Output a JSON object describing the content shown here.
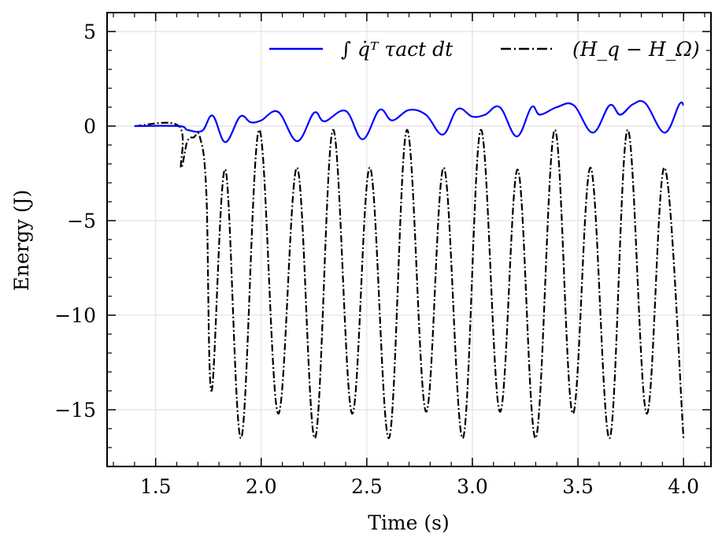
{
  "chart_data": {
    "type": "line",
    "title": "",
    "xlabel": "Time (s)",
    "ylabel": "Energy (J)",
    "xlim": [
      1.27,
      4.13
    ],
    "ylim": [
      -18.0,
      6.0
    ],
    "xticks": [
      1.5,
      2.0,
      2.5,
      3.0,
      3.5,
      4.0
    ],
    "xtick_labels": [
      "1.5",
      "2.0",
      "2.5",
      "3.0",
      "3.5",
      "4.0"
    ],
    "yticks": [
      5,
      0,
      -5,
      -10,
      -15
    ],
    "ytick_labels": [
      "5",
      "0",
      "−5",
      "−10",
      "−15"
    ],
    "grid": true,
    "legend_position": "top-right",
    "series": [
      {
        "name": "∫ q̇ᵀ τact dt",
        "color": "#0000ff",
        "style": "solid",
        "points": [
          [
            1.4,
            0.0
          ],
          [
            1.61,
            0.0
          ],
          [
            1.65,
            -0.2
          ],
          [
            1.72,
            -0.25
          ],
          [
            1.77,
            0.55
          ],
          [
            1.83,
            -0.85
          ],
          [
            1.9,
            0.5
          ],
          [
            1.95,
            0.2
          ],
          [
            2.0,
            0.3
          ],
          [
            2.08,
            0.75
          ],
          [
            2.17,
            -0.8
          ],
          [
            2.25,
            0.7
          ],
          [
            2.3,
            0.25
          ],
          [
            2.4,
            0.8
          ],
          [
            2.48,
            -0.7
          ],
          [
            2.56,
            0.85
          ],
          [
            2.62,
            0.3
          ],
          [
            2.7,
            0.85
          ],
          [
            2.78,
            0.6
          ],
          [
            2.86,
            -0.45
          ],
          [
            2.93,
            0.9
          ],
          [
            3.0,
            0.5
          ],
          [
            3.06,
            0.6
          ],
          [
            3.13,
            1.0
          ],
          [
            3.21,
            -0.55
          ],
          [
            3.28,
            1.0
          ],
          [
            3.32,
            0.6
          ],
          [
            3.4,
            1.0
          ],
          [
            3.48,
            1.1
          ],
          [
            3.57,
            -0.35
          ],
          [
            3.65,
            1.1
          ],
          [
            3.7,
            0.6
          ],
          [
            3.76,
            1.15
          ],
          [
            3.82,
            1.2
          ],
          [
            3.91,
            -0.35
          ],
          [
            3.98,
            1.15
          ],
          [
            4.0,
            1.1
          ]
        ]
      },
      {
        "name": "(H_q − H_Ω)",
        "color": "#000000",
        "style": "dashdot",
        "points": [
          [
            1.4,
            0.0
          ],
          [
            1.61,
            0.0
          ],
          [
            1.62,
            -2.2
          ],
          [
            1.65,
            -0.8
          ],
          [
            1.68,
            -0.6
          ],
          [
            1.71,
            -0.6
          ],
          [
            1.74,
            -3.5
          ],
          [
            1.765,
            -14.0
          ],
          [
            1.83,
            -2.3
          ],
          [
            1.905,
            -16.5
          ],
          [
            1.99,
            -0.2
          ],
          [
            2.08,
            -15.2
          ],
          [
            2.17,
            -2.2
          ],
          [
            2.255,
            -16.5
          ],
          [
            2.34,
            -0.2
          ],
          [
            2.43,
            -15.2
          ],
          [
            2.515,
            -2.2
          ],
          [
            2.605,
            -16.5
          ],
          [
            2.69,
            -0.2
          ],
          [
            2.78,
            -15.1
          ],
          [
            2.865,
            -2.2
          ],
          [
            2.955,
            -16.5
          ],
          [
            3.04,
            -0.2
          ],
          [
            3.13,
            -15.1
          ],
          [
            3.215,
            -2.3
          ],
          [
            3.3,
            -16.5
          ],
          [
            3.39,
            -0.2
          ],
          [
            3.475,
            -15.2
          ],
          [
            3.56,
            -2.2
          ],
          [
            3.65,
            -16.5
          ],
          [
            3.735,
            -0.2
          ],
          [
            3.825,
            -15.2
          ],
          [
            3.91,
            -2.2
          ],
          [
            4.0,
            -16.5
          ]
        ]
      }
    ]
  }
}
